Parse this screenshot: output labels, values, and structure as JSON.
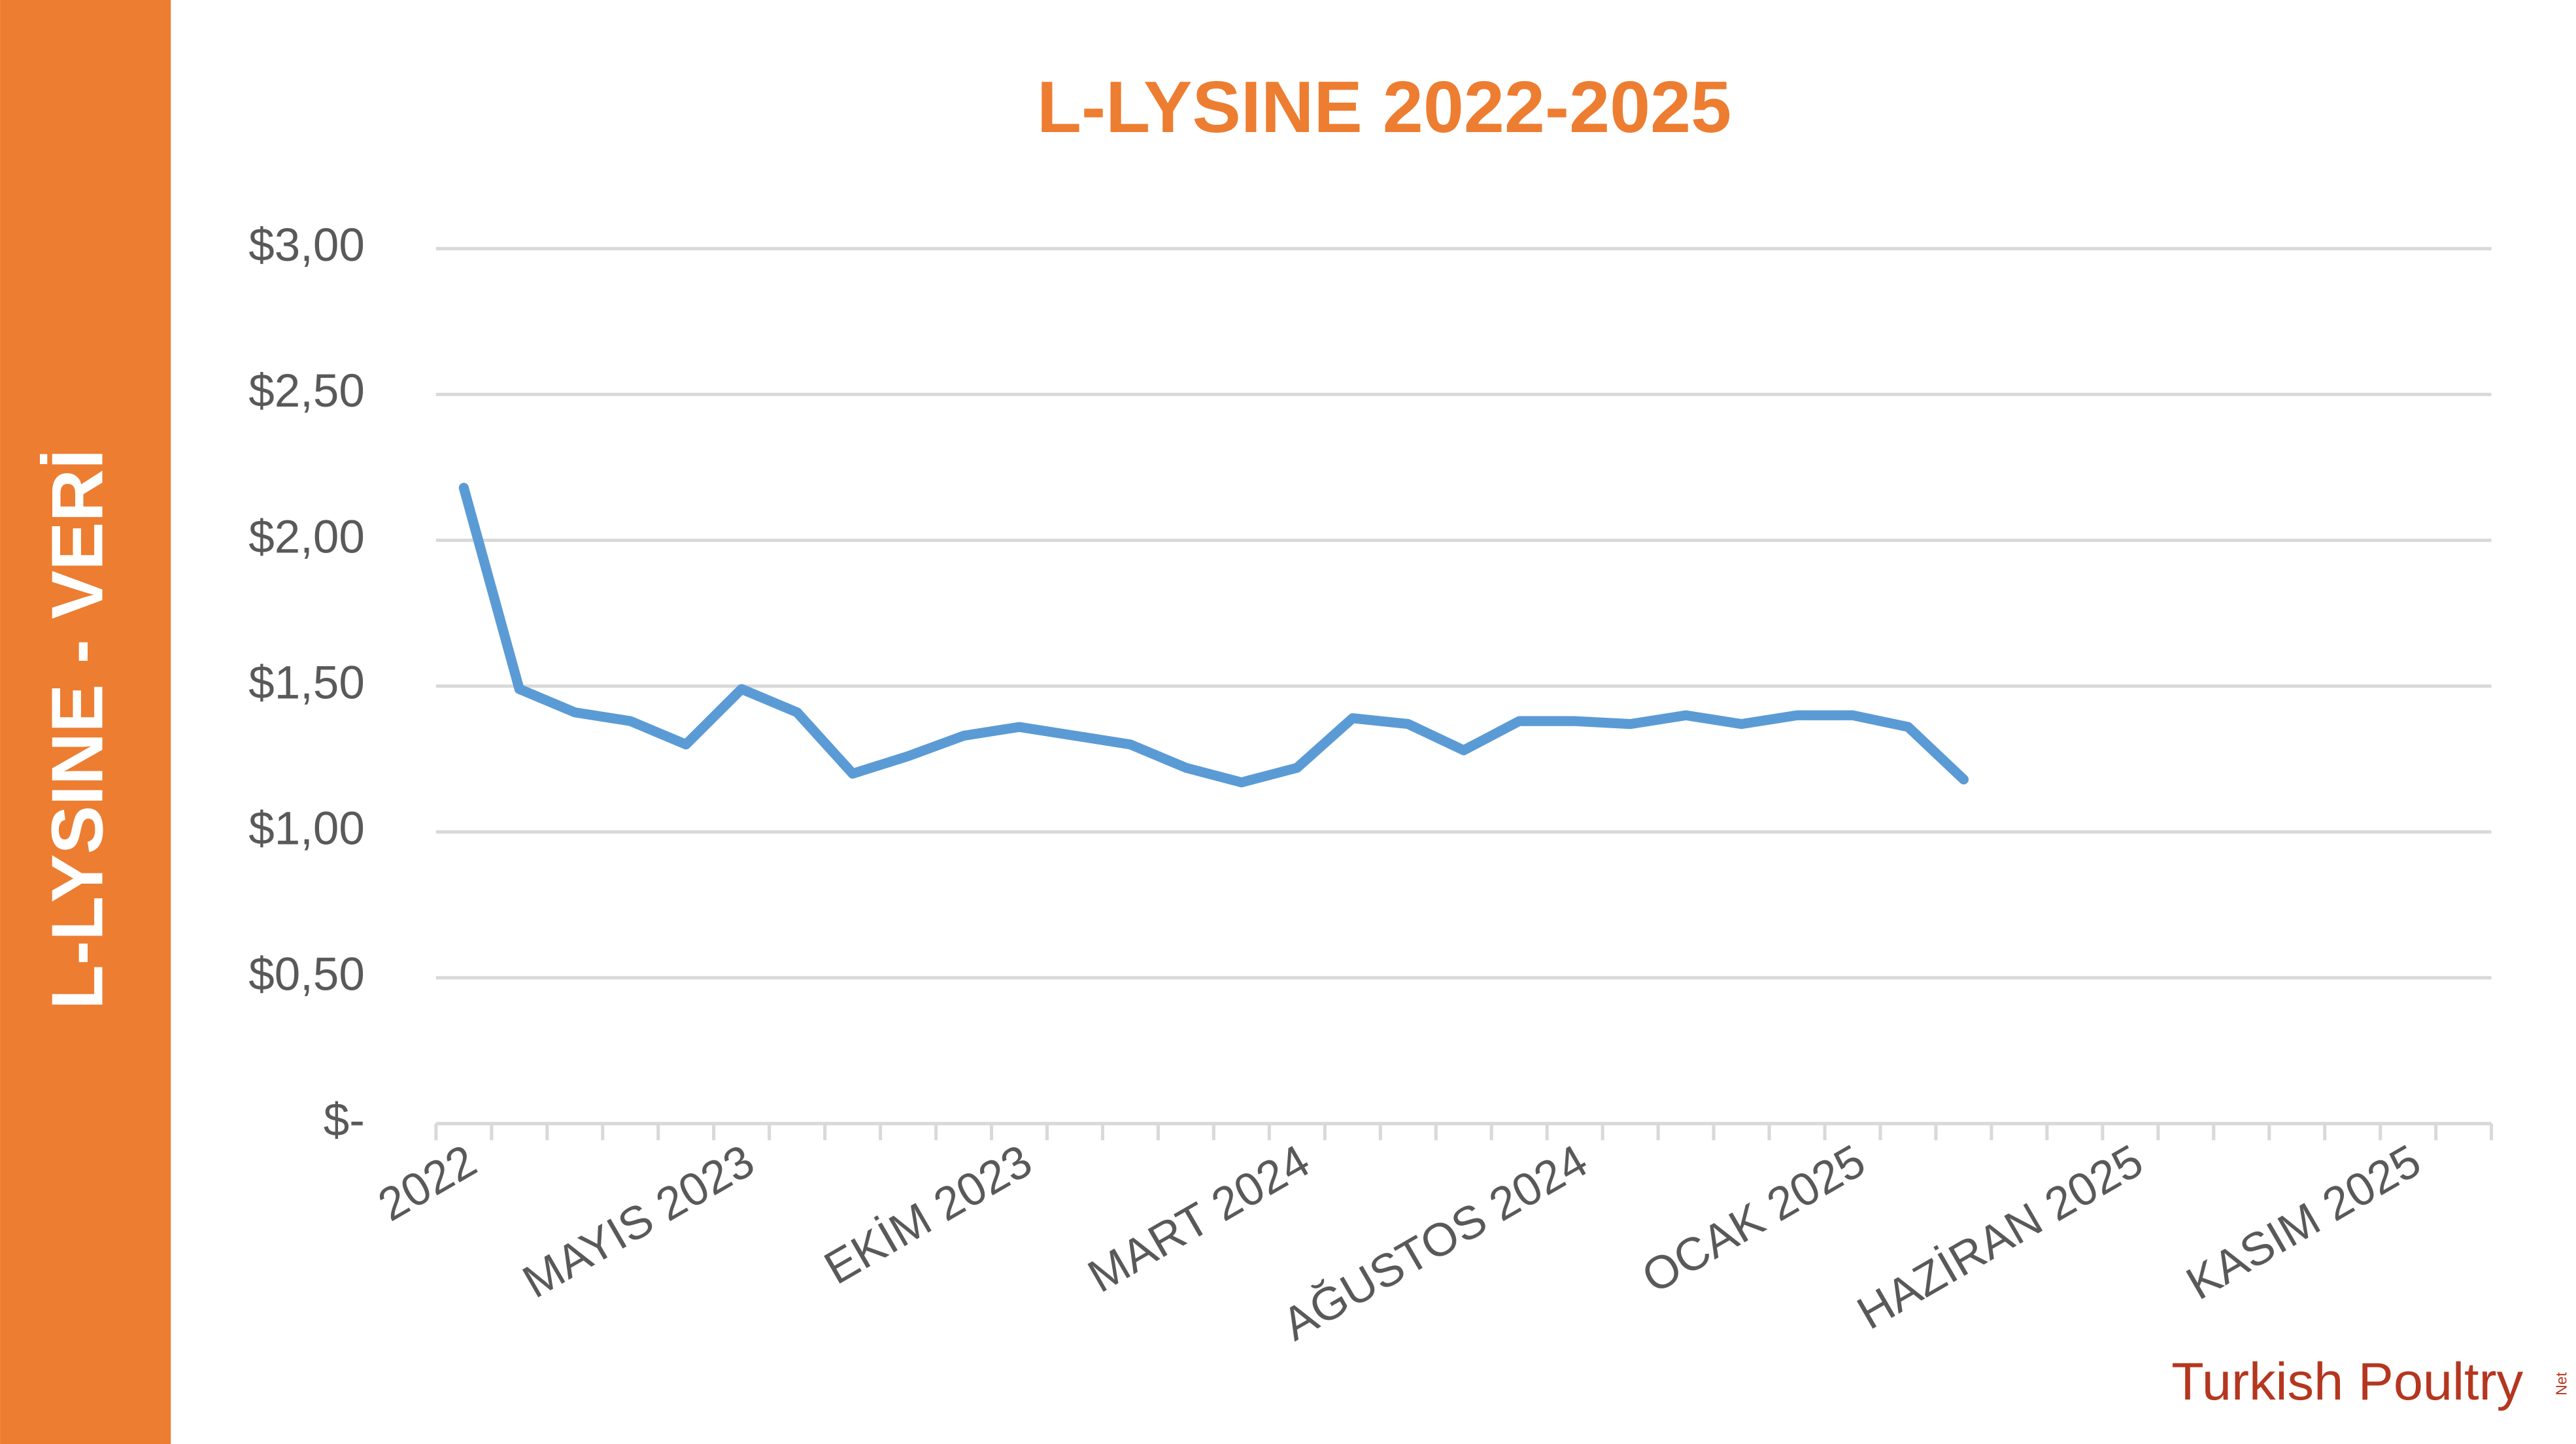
{
  "sidebar": {
    "label": "L-LYSINE - VERİ"
  },
  "logo": {
    "brand": "Turkish Poultry",
    "suffix": "Net"
  },
  "chart_data": {
    "type": "line",
    "title": "L-LYSINE 2022-2025",
    "categories": [
      "2022",
      null,
      null,
      null,
      null,
      "MAYIS 2023",
      null,
      null,
      null,
      null,
      "EKİM 2023",
      null,
      null,
      null,
      null,
      "MART 2024",
      null,
      null,
      null,
      null,
      "AĞUSTOS 2024",
      null,
      null,
      null,
      null,
      "OCAK 2025",
      null,
      null,
      null,
      null,
      "HAZİRAN 2025",
      null,
      null,
      null,
      null,
      "KASIM 2025",
      null
    ],
    "series": [
      {
        "name": "L-LYSINE",
        "color": "#5b9bd5",
        "values": [
          2.18,
          1.49,
          1.41,
          1.38,
          1.3,
          1.49,
          1.41,
          1.2,
          1.26,
          1.33,
          1.36,
          1.33,
          1.3,
          1.22,
          1.17,
          1.22,
          1.39,
          1.37,
          1.28,
          1.38,
          1.38,
          1.37,
          1.4,
          1.37,
          1.4,
          1.4,
          1.36,
          1.18,
          null,
          null,
          null,
          null,
          null,
          null,
          null,
          null,
          null
        ]
      }
    ],
    "ylim": [
      0,
      3
    ],
    "yticks": [
      {
        "value": 0,
        "label": "$-"
      },
      {
        "value": 0.5,
        "label": "$0,50"
      },
      {
        "value": 1,
        "label": "$1,00"
      },
      {
        "value": 1.5,
        "label": "$1,50"
      },
      {
        "value": 2,
        "label": "$2,00"
      },
      {
        "value": 2.5,
        "label": "$2,50"
      },
      {
        "value": 3,
        "label": "$3,00"
      }
    ],
    "grid": true,
    "legend": false
  }
}
